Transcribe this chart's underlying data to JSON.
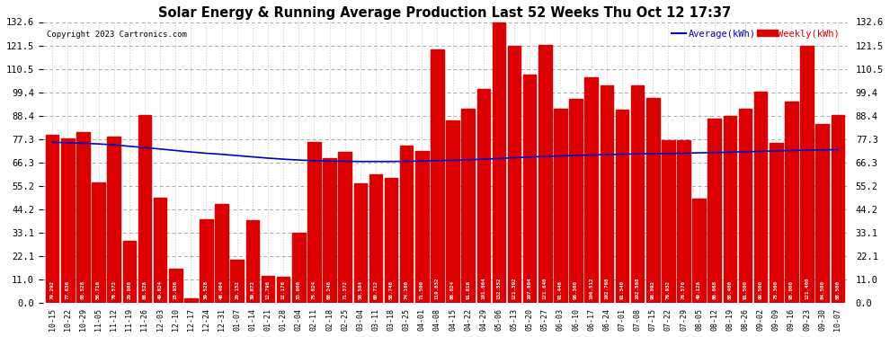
{
  "title": "Solar Energy & Running Average Production Last 52 Weeks Thu Oct 12 17:37",
  "copyright": "Copyright 2023 Cartronics.com",
  "legend_avg": "Average(kWh)",
  "legend_weekly": "Weekly(kWh)",
  "bar_color": "#dd0000",
  "avg_line_color": "#0000cc",
  "background_color": "#ffffff",
  "ylim": [
    0.0,
    132.6
  ],
  "yticks": [
    0.0,
    11.0,
    22.1,
    33.1,
    44.2,
    55.2,
    66.3,
    77.3,
    88.4,
    99.4,
    110.5,
    121.5,
    132.6
  ],
  "categories": [
    "10-15",
    "10-22",
    "10-29",
    "11-05",
    "11-12",
    "11-19",
    "11-26",
    "12-03",
    "12-10",
    "12-17",
    "12-24",
    "12-31",
    "01-07",
    "01-14",
    "01-21",
    "01-28",
    "02-04",
    "02-11",
    "02-18",
    "02-25",
    "03-04",
    "03-11",
    "03-18",
    "03-25",
    "04-01",
    "04-08",
    "04-15",
    "04-22",
    "04-29",
    "05-06",
    "05-13",
    "05-20",
    "05-27",
    "06-03",
    "06-10",
    "06-17",
    "06-24",
    "07-01",
    "07-08",
    "07-15",
    "07-22",
    "07-29",
    "08-05",
    "08-12",
    "08-19",
    "08-26",
    "09-02",
    "09-09",
    "09-16",
    "09-23",
    "09-30",
    "10-07"
  ],
  "weekly_values": [
    79.292,
    77.636,
    80.528,
    56.716,
    78.572,
    29.088,
    88.528,
    49.624,
    15.936,
    1.928,
    39.528,
    46.464,
    20.152,
    39.072,
    12.796,
    12.176,
    33.008,
    75.824,
    68.248,
    71.372,
    56.584,
    60.712,
    58.748,
    74.1,
    71.5,
    119.832,
    86.024,
    91.816,
    101.064,
    132.552,
    121.392,
    107.804,
    121.64,
    91.448,
    96.36,
    106.512,
    102.768,
    91.34,
    102.568,
    96.892,
    76.932,
    76.576,
    49.128,
    86.868,
    88.4,
    91.5,
    99.5,
    75.3,
    95.0,
    121.4,
    84.5,
    88.5
  ],
  "avg_values": [
    75.8,
    75.6,
    75.3,
    75.0,
    74.6,
    73.9,
    73.3,
    72.6,
    71.9,
    71.2,
    70.6,
    70.1,
    69.5,
    68.9,
    68.3,
    67.8,
    67.4,
    67.1,
    66.9,
    66.8,
    66.7,
    66.7,
    66.7,
    66.8,
    66.9,
    67.1,
    67.3,
    67.5,
    67.8,
    68.1,
    68.5,
    68.8,
    69.1,
    69.3,
    69.6,
    69.8,
    70.0,
    70.1,
    70.3,
    70.4,
    70.5,
    70.6,
    70.8,
    70.9,
    71.1,
    71.3,
    71.5,
    71.7,
    71.9,
    72.1,
    72.2,
    72.3
  ]
}
